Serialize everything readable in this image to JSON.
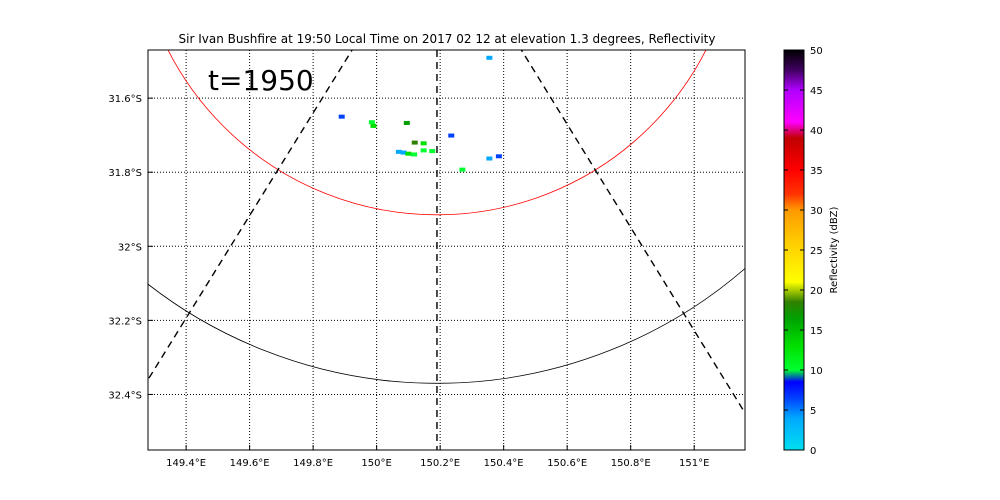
{
  "chart_data": {
    "type": "heatmap",
    "title": "Sir Ivan Bushfire at 19:50 Local Time on 2017 02 12 at elevation 1.3 degrees, Reflectivity",
    "annotation": "t=1950",
    "xlim": [
      149.28,
      151.16
    ],
    "ylim": [
      -32.55,
      -31.47
    ],
    "x_ticks": [
      {
        "value": 149.4,
        "label": "149.4°E"
      },
      {
        "value": 149.6,
        "label": "149.6°E"
      },
      {
        "value": 149.8,
        "label": "149.8°E"
      },
      {
        "value": 150.0,
        "label": "150°E"
      },
      {
        "value": 150.2,
        "label": "150.2°E"
      },
      {
        "value": 150.4,
        "label": "150.4°E"
      },
      {
        "value": 150.6,
        "label": "150.6°E"
      },
      {
        "value": 150.8,
        "label": "150.8°E"
      },
      {
        "value": 151.0,
        "label": "151°E"
      }
    ],
    "y_ticks": [
      {
        "value": -31.6,
        "label": "31.6°S"
      },
      {
        "value": -31.8,
        "label": "31.8°S"
      },
      {
        "value": -32.0,
        "label": "32°S"
      },
      {
        "value": -32.2,
        "label": "32.2°S"
      },
      {
        "value": -32.4,
        "label": "32.4°S"
      }
    ],
    "grid": true,
    "radar_center": {
      "lon": 150.19,
      "lat": -31.1
    },
    "range_rings": [
      {
        "color": "#ff0000",
        "bottom_lat": -31.915,
        "edge_lat": -31.6
      },
      {
        "color": "#000000",
        "bottom_lat": -32.37,
        "edge_lat": -32.2
      }
    ],
    "radials": [
      {
        "from": [
          150.19,
          -31.1
        ],
        "to": [
          149.28,
          -32.36
        ]
      },
      {
        "from": [
          150.19,
          -31.1
        ],
        "to": [
          151.16,
          -32.45
        ]
      },
      {
        "from": [
          150.19,
          -31.47
        ],
        "to": [
          150.19,
          -32.55
        ]
      }
    ],
    "reflectivity_cells": [
      {
        "lon": 150.355,
        "lat": -31.491,
        "dbz": 6
      },
      {
        "lon": 149.89,
        "lat": -31.65,
        "dbz": 7
      },
      {
        "lon": 149.985,
        "lat": -31.665,
        "dbz": 12
      },
      {
        "lon": 149.99,
        "lat": -31.675,
        "dbz": 14
      },
      {
        "lon": 150.095,
        "lat": -31.667,
        "dbz": 18
      },
      {
        "lon": 150.235,
        "lat": -31.701,
        "dbz": 8
      },
      {
        "lon": 150.12,
        "lat": -31.72,
        "dbz": 20
      },
      {
        "lon": 150.148,
        "lat": -31.722,
        "dbz": 13
      },
      {
        "lon": 150.07,
        "lat": -31.745,
        "dbz": 6
      },
      {
        "lon": 150.085,
        "lat": -31.747,
        "dbz": 5
      },
      {
        "lon": 150.1,
        "lat": -31.75,
        "dbz": 13
      },
      {
        "lon": 150.118,
        "lat": -31.752,
        "dbz": 12
      },
      {
        "lon": 150.148,
        "lat": -31.741,
        "dbz": 12
      },
      {
        "lon": 150.175,
        "lat": -31.743,
        "dbz": 12
      },
      {
        "lon": 150.355,
        "lat": -31.763,
        "dbz": 6
      },
      {
        "lon": 150.385,
        "lat": -31.757,
        "dbz": 7
      },
      {
        "lon": 150.27,
        "lat": -31.793,
        "dbz": 12
      }
    ],
    "colorbar": {
      "label": "Reflectivity (dBZ)",
      "min": 0,
      "max": 50,
      "ticks": [
        "0",
        "5",
        "10",
        "15",
        "20",
        "25",
        "30",
        "35",
        "40",
        "45",
        "50"
      ]
    }
  }
}
